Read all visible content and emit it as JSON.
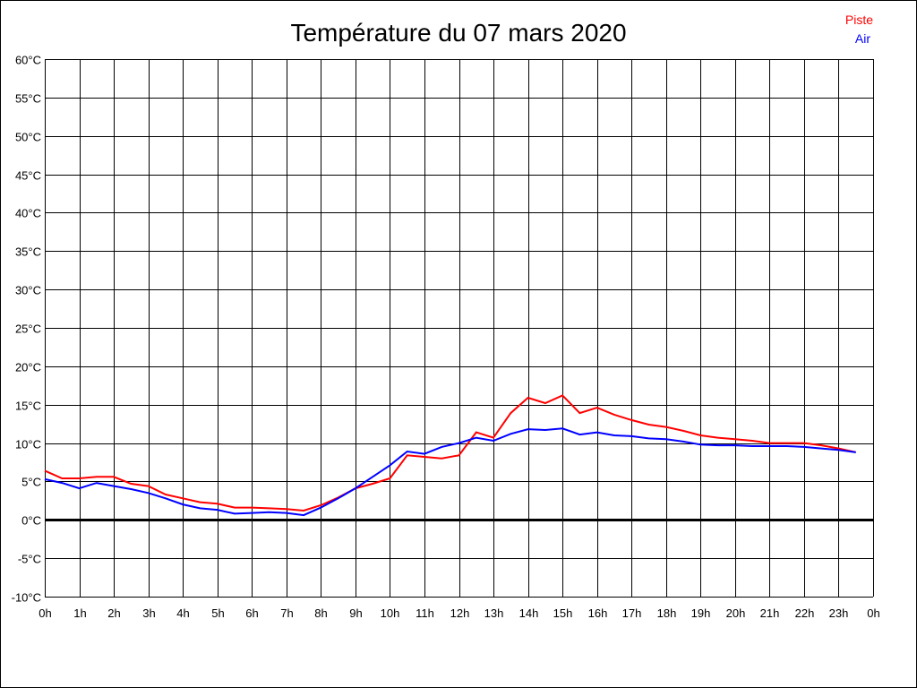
{
  "chart_data": {
    "type": "line",
    "title": "Température du 07 mars 2020",
    "xlabel": "",
    "ylabel": "",
    "ylim": [
      -10,
      60
    ],
    "xlim": [
      0,
      24
    ],
    "grid": true,
    "legend_position": "top-right",
    "y_ticks": [
      "60°C",
      "55°C",
      "50°C",
      "45°C",
      "40°C",
      "35°C",
      "30°C",
      "25°C",
      "20°C",
      "15°C",
      "10°C",
      "5°C",
      "0°C",
      "-5°C",
      "-10°C"
    ],
    "y_tick_values": [
      60,
      55,
      50,
      45,
      40,
      35,
      30,
      25,
      20,
      15,
      10,
      5,
      0,
      -5,
      -10
    ],
    "x_ticks": [
      "0h",
      "1h",
      "2h",
      "3h",
      "4h",
      "5h",
      "6h",
      "7h",
      "8h",
      "9h",
      "10h",
      "11h",
      "12h",
      "13h",
      "14h",
      "15h",
      "16h",
      "17h",
      "18h",
      "19h",
      "20h",
      "21h",
      "22h",
      "23h",
      "0h"
    ],
    "x": [
      0,
      0.5,
      1,
      1.5,
      2,
      2.5,
      3,
      3.5,
      4,
      4.5,
      5,
      5.5,
      6,
      6.5,
      7,
      7.5,
      8,
      8.5,
      9,
      9.5,
      10,
      10.5,
      11,
      11.5,
      12,
      12.5,
      13,
      13.5,
      14,
      14.5,
      15,
      15.5,
      16,
      16.5,
      17,
      17.5,
      18,
      18.5,
      19,
      19.5,
      20,
      20.5,
      21,
      21.5,
      22,
      22.5,
      23,
      23.5
    ],
    "series": [
      {
        "name": "Piste",
        "color": "#ff0000",
        "values": [
          6.4,
          5.4,
          5.4,
          5.6,
          5.6,
          4.7,
          4.4,
          3.3,
          2.8,
          2.3,
          2.1,
          1.6,
          1.6,
          1.5,
          1.4,
          1.2,
          1.9,
          2.9,
          4.1,
          4.7,
          5.4,
          8.4,
          8.2,
          8.0,
          8.4,
          11.4,
          10.7,
          13.9,
          15.9,
          15.2,
          16.2,
          13.9,
          14.6,
          13.7,
          13.0,
          12.4,
          12.1,
          11.6,
          11.0,
          10.7,
          10.5,
          10.3,
          10.0,
          10.0,
          10.0,
          9.7,
          9.3,
          8.8
        ]
      },
      {
        "name": "Air",
        "color": "#0000ff",
        "values": [
          5.3,
          4.8,
          4.1,
          4.8,
          4.4,
          4.0,
          3.5,
          2.8,
          2.0,
          1.5,
          1.3,
          0.8,
          0.9,
          1.0,
          0.9,
          0.6,
          1.6,
          2.8,
          4.1,
          5.6,
          7.1,
          8.9,
          8.6,
          9.5,
          10.0,
          10.7,
          10.3,
          11.2,
          11.8,
          11.7,
          11.9,
          11.1,
          11.4,
          11.0,
          10.9,
          10.6,
          10.5,
          10.2,
          9.8,
          9.7,
          9.7,
          9.6,
          9.6,
          9.6,
          9.5,
          9.3,
          9.1,
          8.8
        ]
      }
    ]
  }
}
